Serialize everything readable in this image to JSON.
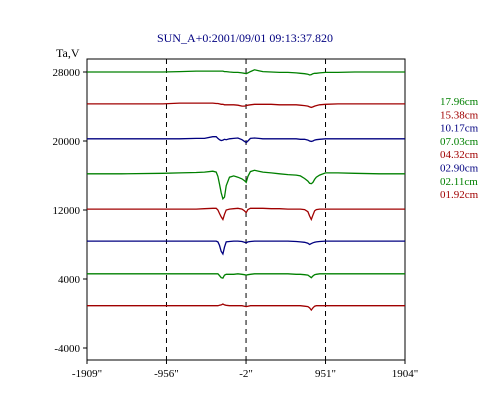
{
  "chart_data": {
    "type": "line",
    "title": "SUN_A+0:2001/09/01 09:13:37.820",
    "ylabel": "Ta,V",
    "xlabel": "",
    "xlim": [
      -1909,
      1904
    ],
    "ylim": [
      -4000,
      30000
    ],
    "grid": "vertical dashed lines at -956, -2, 951",
    "legend_position": "right",
    "x_ticks": [
      {
        "value": -1909,
        "label": "-1909\""
      },
      {
        "value": -956,
        "label": "-956\""
      },
      {
        "value": -2,
        "label": "-2\""
      },
      {
        "value": 951,
        "label": "951\""
      },
      {
        "value": 1904,
        "label": "1904\""
      }
    ],
    "y_ticks": [
      {
        "value": 28000,
        "label": "28000"
      },
      {
        "value": 20000,
        "label": "20000"
      },
      {
        "value": 12000,
        "label": "12000"
      },
      {
        "value": 4000,
        "label": "4000"
      },
      {
        "value": -4000,
        "label": "-4000"
      }
    ],
    "x": [
      -1909,
      -1500,
      -1000,
      -800,
      -600,
      -500,
      -400,
      -360,
      -340,
      -320,
      -300,
      -280,
      -260,
      -240,
      -200,
      -150,
      -100,
      -50,
      -20,
      0,
      20,
      50,
      100,
      150,
      200,
      300,
      400,
      500,
      600,
      650,
      700,
      740,
      760,
      780,
      800,
      820,
      840,
      880,
      951,
      1100,
      1300,
      1600,
      1904
    ],
    "series": [
      {
        "name": "17.96cm",
        "color": "#008000",
        "values": [
          28000,
          28000,
          28000,
          28050,
          28100,
          28100,
          28100,
          28100,
          28100,
          28100,
          28100,
          28100,
          28050,
          28050,
          28000,
          27950,
          27950,
          27900,
          27850,
          27800,
          27900,
          28050,
          28250,
          28150,
          28050,
          28000,
          27950,
          27950,
          27900,
          27850,
          27800,
          27750,
          27650,
          27700,
          27800,
          27850,
          27850,
          27900,
          27950,
          27950,
          28000,
          28000,
          28000
        ]
      },
      {
        "name": "15.38cm",
        "color": "#a00000",
        "values": [
          24300,
          24300,
          24300,
          24400,
          24400,
          24400,
          24400,
          24350,
          24350,
          24300,
          24250,
          24250,
          24200,
          24200,
          24200,
          24200,
          24150,
          24050,
          24050,
          24100,
          24150,
          24200,
          24250,
          24250,
          24250,
          24250,
          24200,
          24200,
          24200,
          24150,
          24100,
          24050,
          23950,
          23900,
          23950,
          24050,
          24100,
          24200,
          24250,
          24300,
          24300,
          24300,
          24300
        ]
      },
      {
        "name": "10.17cm",
        "color": "#000080",
        "values": [
          20250,
          20250,
          20250,
          20250,
          20300,
          20300,
          20500,
          20500,
          20300,
          20150,
          20050,
          20100,
          20200,
          20150,
          20250,
          20300,
          20350,
          20150,
          19950,
          19800,
          20000,
          20300,
          20350,
          20300,
          20250,
          20250,
          20250,
          20250,
          20250,
          20200,
          20200,
          20100,
          20000,
          19950,
          20000,
          20100,
          20150,
          20200,
          20250,
          20250,
          20250,
          20250,
          20250
        ]
      },
      {
        "name": "07.03cm",
        "color": "#008000",
        "values": [
          16200,
          16200,
          16250,
          16300,
          16350,
          16400,
          16500,
          16400,
          15900,
          15000,
          14000,
          13300,
          13500,
          14800,
          15800,
          15950,
          15800,
          15600,
          15400,
          15200,
          15900,
          16450,
          16600,
          16500,
          16400,
          16300,
          16200,
          16100,
          16050,
          15950,
          15650,
          15350,
          15100,
          15050,
          15200,
          15550,
          15800,
          16050,
          16300,
          16300,
          16250,
          16200,
          16200
        ]
      },
      {
        "name": "04.32cm",
        "color": "#a00000",
        "values": [
          12100,
          12100,
          12100,
          12100,
          12100,
          12150,
          12200,
          12200,
          12000,
          11600,
          11200,
          10900,
          11500,
          12000,
          12100,
          12150,
          12200,
          12100,
          11900,
          11700,
          12050,
          12200,
          12200,
          12200,
          12200,
          12150,
          12150,
          12100,
          12100,
          12100,
          12050,
          11800,
          11300,
          10900,
          11400,
          11900,
          12050,
          12100,
          12100,
          12100,
          12100,
          12100,
          12100
        ]
      },
      {
        "name": "02.90cm",
        "color": "#000080",
        "values": [
          8400,
          8400,
          8400,
          8400,
          8400,
          8400,
          8400,
          8400,
          8300,
          7900,
          7200,
          6900,
          7700,
          8300,
          8350,
          8400,
          8400,
          8350,
          8250,
          8200,
          8300,
          8350,
          8400,
          8400,
          8400,
          8400,
          8400,
          8400,
          8350,
          8300,
          8250,
          8150,
          8000,
          8100,
          8200,
          8250,
          8300,
          8350,
          8400,
          8400,
          8400,
          8400,
          8400
        ]
      },
      {
        "name": "02.11cm",
        "color": "#008000",
        "values": [
          4600,
          4600,
          4600,
          4600,
          4600,
          4600,
          4600,
          4600,
          4600,
          4400,
          4150,
          4100,
          4450,
          4550,
          4550,
          4550,
          4600,
          4550,
          4500,
          4450,
          4500,
          4550,
          4600,
          4600,
          4600,
          4600,
          4600,
          4600,
          4550,
          4550,
          4500,
          4450,
          4300,
          4150,
          4350,
          4500,
          4550,
          4600,
          4600,
          4600,
          4600,
          4600,
          4600
        ]
      },
      {
        "name": "01.92cm",
        "color": "#a00000",
        "values": [
          900,
          900,
          900,
          900,
          900,
          900,
          900,
          900,
          900,
          950,
          1000,
          1100,
          1000,
          950,
          900,
          900,
          900,
          900,
          850,
          800,
          850,
          900,
          900,
          900,
          900,
          900,
          900,
          900,
          900,
          900,
          850,
          800,
          650,
          400,
          650,
          850,
          900,
          900,
          900,
          900,
          900,
          900,
          900
        ]
      }
    ]
  }
}
